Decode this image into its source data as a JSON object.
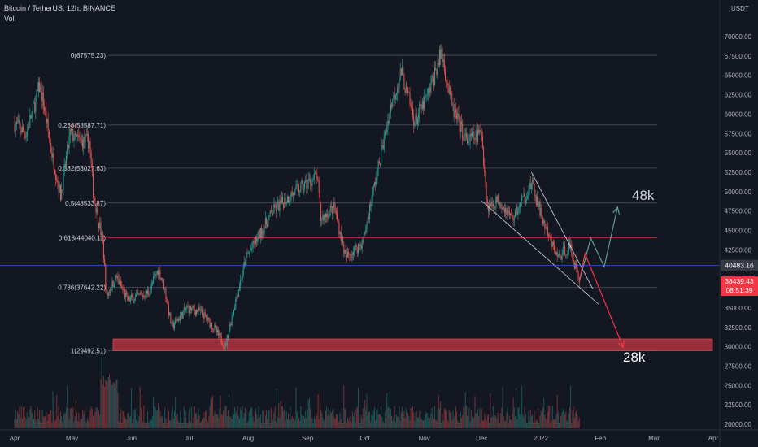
{
  "header": {
    "title": "Bitcoin / TetherUS, 12h, BINANCE",
    "volume_label": "Vol"
  },
  "price_axis": {
    "currency": "USDT",
    "ticks": [
      "70000.00",
      "67500.00",
      "65000.00",
      "62500.00",
      "60000.00",
      "57500.00",
      "55000.00",
      "52500.00",
      "50000.00",
      "47500.00",
      "45000.00",
      "42500.00",
      "40000.00",
      "37500.00",
      "35000.00",
      "32500.00",
      "30000.00",
      "27500.00",
      "25000.00",
      "22500.00",
      "20000.00"
    ],
    "current_price_label": "40483.16",
    "last_price_label": "38439.43",
    "countdown_label": "08:51:39"
  },
  "time_axis": {
    "ticks": [
      "Apr",
      "May",
      "Jun",
      "Jul",
      "Aug",
      "Sep",
      "Oct",
      "Nov",
      "Dec",
      "2022",
      "Feb",
      "Mar",
      "Apr"
    ]
  },
  "fib_levels": [
    {
      "label": "0(67575.23)",
      "price": 67575.23,
      "color": "#d1d4dc"
    },
    {
      "label": "0.236(58587.71)",
      "price": 58587.71,
      "color": "#d1d4dc"
    },
    {
      "label": "0.382(53027.63)",
      "price": 53027.63,
      "color": "#d1d4dc"
    },
    {
      "label": "0.5(48533.87)",
      "price": 48533.87,
      "color": "#d1d4dc"
    },
    {
      "label": "0.618(44040.11)",
      "price": 44040.11,
      "color": "#f23645"
    },
    {
      "label": "0.786(37642.22)",
      "price": 37642.22,
      "color": "#d1d4dc"
    },
    {
      "label": "1(29492.51)",
      "price": 29492.51,
      "color": "#d1d4dc"
    }
  ],
  "annotations": {
    "target_up": "48k",
    "target_down": "28k"
  },
  "colors": {
    "up": "#26a69a",
    "down": "#ef5350",
    "support_zone": "#b2323f",
    "price_line": "#2962ff",
    "arrow_up": "#5f9c98",
    "arrow_down": "#f23645"
  },
  "chart_data": {
    "type": "candlestick",
    "title": "Bitcoin / TetherUS, 12h, BINANCE",
    "ylim": [
      19000,
      72000
    ],
    "x_range": [
      "2021-04-01",
      "2022-04-01"
    ],
    "close_path": [
      [
        "2021-04-01",
        58800
      ],
      [
        "2021-04-07",
        57500
      ],
      [
        "2021-04-14",
        63500
      ],
      [
        "2021-04-16",
        61500
      ],
      [
        "2021-04-20",
        55500
      ],
      [
        "2021-04-25",
        49500
      ],
      [
        "2021-04-30",
        57500
      ],
      [
        "2021-05-05",
        56500
      ],
      [
        "2021-05-10",
        56500
      ],
      [
        "2021-05-12",
        50000
      ],
      [
        "2021-05-17",
        43500
      ],
      [
        "2021-05-19",
        36500
      ],
      [
        "2021-05-24",
        39000
      ],
      [
        "2021-05-30",
        36000
      ],
      [
        "2021-06-05",
        36500
      ],
      [
        "2021-06-10",
        37000
      ],
      [
        "2021-06-15",
        40000
      ],
      [
        "2021-06-18",
        38000
      ],
      [
        "2021-06-22",
        32500
      ],
      [
        "2021-06-30",
        35000
      ],
      [
        "2021-07-07",
        34500
      ],
      [
        "2021-07-14",
        32500
      ],
      [
        "2021-07-20",
        30000
      ],
      [
        "2021-07-25",
        35500
      ],
      [
        "2021-07-31",
        41500
      ],
      [
        "2021-08-07",
        44500
      ],
      [
        "2021-08-14",
        47500
      ],
      [
        "2021-08-23",
        49500
      ],
      [
        "2021-09-06",
        52000
      ],
      [
        "2021-09-08",
        46500
      ],
      [
        "2021-09-15",
        48000
      ],
      [
        "2021-09-21",
        41500
      ],
      [
        "2021-09-30",
        43500
      ],
      [
        "2021-10-04",
        48500
      ],
      [
        "2021-10-10",
        55500
      ],
      [
        "2021-10-15",
        61500
      ],
      [
        "2021-10-20",
        65500
      ],
      [
        "2021-10-27",
        59000
      ],
      [
        "2021-11-03",
        62500
      ],
      [
        "2021-11-10",
        68000
      ],
      [
        "2021-11-16",
        60500
      ],
      [
        "2021-11-23",
        56500
      ],
      [
        "2021-12-01",
        57500
      ],
      [
        "2021-12-04",
        48000
      ],
      [
        "2021-12-10",
        49000
      ],
      [
        "2021-12-17",
        46500
      ],
      [
        "2021-12-27",
        51000
      ],
      [
        "2022-01-05",
        44000
      ],
      [
        "2022-01-10",
        41500
      ],
      [
        "2022-01-16",
        43000
      ],
      [
        "2022-01-21",
        38439
      ]
    ],
    "projections": [
      {
        "name": "48k",
        "points": [
          [
            "2022-01-21",
            38439
          ],
          [
            "2022-01-27",
            44000
          ],
          [
            "2022-02-03",
            40300
          ],
          [
            "2022-02-10",
            48000
          ]
        ]
      },
      {
        "name": "28k",
        "points": [
          [
            "2022-01-21",
            38439
          ],
          [
            "2022-01-24",
            42000
          ],
          [
            "2022-02-13",
            29900
          ]
        ]
      }
    ],
    "channel": {
      "upper": [
        [
          "2021-12-27",
          52500
        ],
        [
          "2022-01-28",
          37500
        ]
      ],
      "lower": [
        [
          "2021-12-01",
          48800
        ],
        [
          "2022-01-31",
          35500
        ]
      ]
    },
    "support_zone": {
      "from": 29500,
      "to": 31000
    },
    "current_price": 40483.16,
    "last_price": 38439.43
  }
}
